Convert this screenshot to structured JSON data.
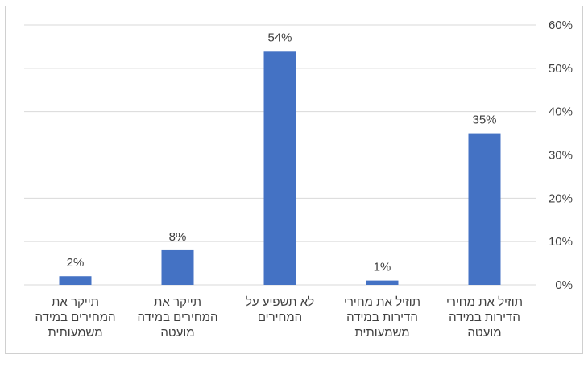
{
  "chart_data": {
    "type": "bar",
    "categories": [
      "תוזיל את מחירי\nהדירות במידה\nמועטה",
      "תוזיל את מחירי\nהדירות במידה\nמשמעותית",
      "לא תשפיע על\nהמחירים",
      "תייקר את\nהמחירים במידה\nמועטה",
      "תייקר את\nהמחירים במידה\nמשמעותית"
    ],
    "values": [
      35,
      1,
      54,
      8,
      2
    ],
    "data_labels": [
      "35%",
      "1%",
      "54%",
      "8%",
      "2%"
    ],
    "ylim": [
      0,
      60
    ],
    "yticks": [
      "0%",
      "10%",
      "20%",
      "30%",
      "40%",
      "50%",
      "60%"
    ],
    "ytick_values": [
      0,
      10,
      20,
      30,
      40,
      50,
      60
    ],
    "y_axis_position": "right",
    "category_order": "right-to-left",
    "grid": true,
    "bar_color": "#4472C4",
    "grid_color": "#d9d9d9",
    "text_color": "#404040"
  }
}
